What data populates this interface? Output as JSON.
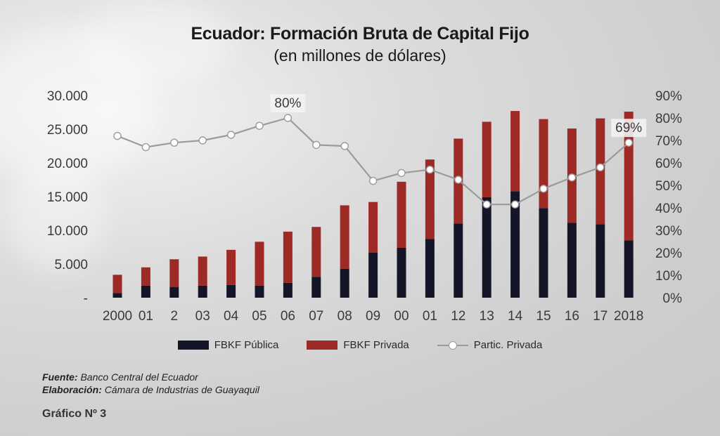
{
  "title": "Ecuador: Formación Bruta de Capital Fijo",
  "subtitle": "(en millones de dólares)",
  "legend": {
    "publica": "FBKF Pública",
    "privada": "FBKF Privada",
    "partic": "Partic. Privada"
  },
  "source_label": "Fuente:",
  "source_text": "Banco Central del Ecuador",
  "elab_label": "Elaboración:",
  "elab_text": "Cámara de Industrias de Guayaquil",
  "figure_label": "Gráfico Nº 3",
  "colors": {
    "publica": "#141628",
    "privada": "#9e2a26",
    "line": "#9b9b9b"
  },
  "chart_data": {
    "type": "bar",
    "stacked": true,
    "categories": [
      "2000",
      "01",
      "2",
      "03",
      "04",
      "05",
      "06",
      "07",
      "08",
      "09",
      "00",
      "01",
      "12",
      "13",
      "14",
      "15",
      "16",
      "17",
      "2018"
    ],
    "series": [
      {
        "name": "FBKF Pública",
        "axis": "left",
        "values": [
          700,
          1800,
          1600,
          1800,
          1900,
          1800,
          2200,
          3100,
          4300,
          6700,
          7400,
          8700,
          11000,
          14900,
          15800,
          13300,
          11100,
          10900,
          8500
        ]
      },
      {
        "name": "FBKF Privada",
        "axis": "left",
        "values": [
          2700,
          2700,
          4100,
          4300,
          5200,
          6500,
          7600,
          7400,
          9400,
          7500,
          9800,
          11800,
          12600,
          11200,
          11900,
          13200,
          14000,
          15700,
          19100
        ]
      },
      {
        "name": "Partic. Privada",
        "type": "line",
        "axis": "right",
        "values": [
          72,
          67,
          69,
          70,
          72.5,
          76.5,
          80,
          68,
          67.5,
          52,
          55.5,
          57,
          52.5,
          41.5,
          41.5,
          48.5,
          53.5,
          58,
          69
        ]
      }
    ],
    "yleft": {
      "min": 0,
      "max": 30000,
      "ticks": [
        "-",
        "5.000",
        "10.000",
        "15.000",
        "20.000",
        "25.000",
        "30.000"
      ]
    },
    "yright": {
      "min": 0,
      "max": 90,
      "ticks": [
        "0%",
        "10%",
        "20%",
        "30%",
        "40%",
        "50%",
        "60%",
        "70%",
        "80%",
        "90%"
      ]
    },
    "annotations": [
      {
        "index": 6,
        "text": "80%"
      },
      {
        "index": 18,
        "text": "69%"
      }
    ],
    "grid": false,
    "legend_position": "bottom"
  }
}
